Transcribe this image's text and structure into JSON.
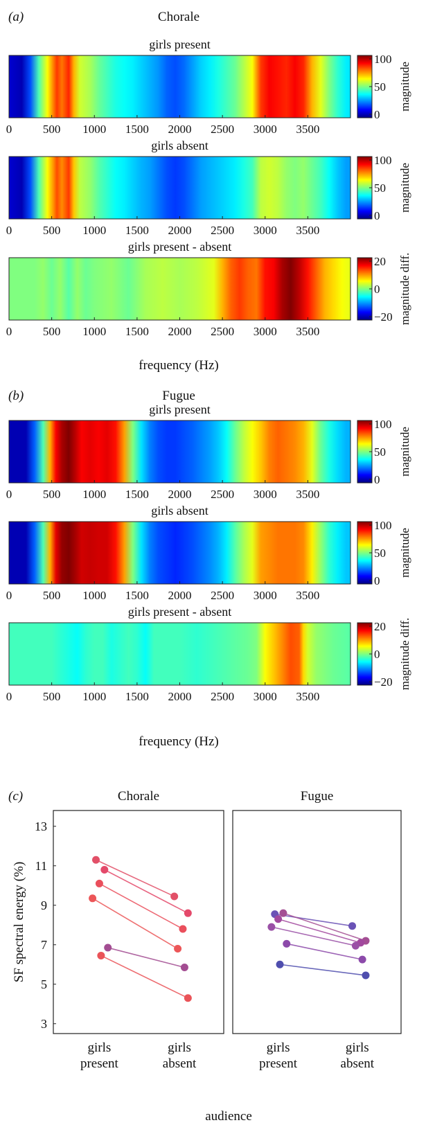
{
  "panel_a": {
    "letter": "(a)",
    "title": "Chorale",
    "xlabel": "frequency (Hz)",
    "xticks": [
      0,
      500,
      1000,
      1500,
      2000,
      2500,
      3000,
      3500
    ],
    "xlim": [
      0,
      4000
    ],
    "plots": [
      {
        "title": "girls present",
        "colorbar_label": "magnitude",
        "clim": [
          0,
          100
        ],
        "cticks": [
          "100",
          "50",
          "0"
        ],
        "stops": [
          [
            0,
            8
          ],
          [
            150,
            5
          ],
          [
            250,
            20
          ],
          [
            350,
            45
          ],
          [
            450,
            62
          ],
          [
            520,
            75
          ],
          [
            560,
            82
          ],
          [
            620,
            76
          ],
          [
            700,
            84
          ],
          [
            760,
            70
          ],
          [
            830,
            58
          ],
          [
            950,
            54
          ],
          [
            1050,
            48
          ],
          [
            1150,
            44
          ],
          [
            1250,
            40
          ],
          [
            1350,
            38
          ],
          [
            1450,
            36
          ],
          [
            1550,
            33
          ],
          [
            1650,
            30
          ],
          [
            1750,
            27
          ],
          [
            1850,
            22
          ],
          [
            1950,
            20
          ],
          [
            2050,
            23
          ],
          [
            2150,
            28
          ],
          [
            2250,
            33
          ],
          [
            2350,
            36
          ],
          [
            2450,
            40
          ],
          [
            2550,
            44
          ],
          [
            2650,
            48
          ],
          [
            2750,
            55
          ],
          [
            2850,
            62
          ],
          [
            2950,
            82
          ],
          [
            3050,
            88
          ],
          [
            3150,
            86
          ],
          [
            3250,
            84
          ],
          [
            3350,
            88
          ],
          [
            3450,
            84
          ],
          [
            3550,
            70
          ],
          [
            3650,
            60
          ],
          [
            3750,
            50
          ],
          [
            3850,
            42
          ],
          [
            3950,
            36
          ],
          [
            4000,
            35
          ]
        ]
      },
      {
        "title": "girls absent",
        "colorbar_label": "magnitude",
        "clim": [
          0,
          100
        ],
        "cticks": [
          "100",
          "50",
          "0"
        ],
        "stops": [
          [
            0,
            8
          ],
          [
            150,
            5
          ],
          [
            250,
            20
          ],
          [
            350,
            45
          ],
          [
            450,
            62
          ],
          [
            520,
            73
          ],
          [
            560,
            80
          ],
          [
            620,
            74
          ],
          [
            700,
            82
          ],
          [
            760,
            68
          ],
          [
            830,
            56
          ],
          [
            950,
            52
          ],
          [
            1050,
            46
          ],
          [
            1150,
            42
          ],
          [
            1250,
            38
          ],
          [
            1350,
            36
          ],
          [
            1450,
            33
          ],
          [
            1550,
            30
          ],
          [
            1650,
            28
          ],
          [
            1750,
            24
          ],
          [
            1850,
            20
          ],
          [
            1950,
            18
          ],
          [
            2050,
            20
          ],
          [
            2150,
            24
          ],
          [
            2250,
            28
          ],
          [
            2350,
            30
          ],
          [
            2450,
            32
          ],
          [
            2550,
            34
          ],
          [
            2650,
            36
          ],
          [
            2750,
            40
          ],
          [
            2850,
            44
          ],
          [
            2950,
            56
          ],
          [
            3050,
            58
          ],
          [
            3150,
            56
          ],
          [
            3250,
            52
          ],
          [
            3350,
            50
          ],
          [
            3450,
            52
          ],
          [
            3550,
            48
          ],
          [
            3650,
            44
          ],
          [
            3750,
            38
          ],
          [
            3850,
            32
          ],
          [
            3950,
            28
          ],
          [
            4000,
            28
          ]
        ]
      },
      {
        "title": "girls present - absent",
        "colorbar_label": "magnitude diff.",
        "clim": [
          -25,
          25
        ],
        "cticks": [
          "20",
          "0",
          "−20"
        ],
        "stops": [
          [
            0,
            0
          ],
          [
            300,
            0
          ],
          [
            400,
            1
          ],
          [
            500,
            -1
          ],
          [
            600,
            1
          ],
          [
            700,
            -2
          ],
          [
            800,
            1
          ],
          [
            900,
            -1
          ],
          [
            1000,
            0
          ],
          [
            1200,
            1
          ],
          [
            1400,
            -1
          ],
          [
            1600,
            2
          ],
          [
            1800,
            3
          ],
          [
            2000,
            2
          ],
          [
            2200,
            3
          ],
          [
            2400,
            5
          ],
          [
            2500,
            10
          ],
          [
            2600,
            14
          ],
          [
            2700,
            16
          ],
          [
            2800,
            14
          ],
          [
            2900,
            13
          ],
          [
            3000,
            18
          ],
          [
            3100,
            19
          ],
          [
            3200,
            23
          ],
          [
            3300,
            25
          ],
          [
            3400,
            22
          ],
          [
            3500,
            18
          ],
          [
            3600,
            14
          ],
          [
            3700,
            10
          ],
          [
            3800,
            8
          ],
          [
            3900,
            6
          ],
          [
            4000,
            5
          ]
        ]
      }
    ]
  },
  "panel_b": {
    "letter": "(b)",
    "title": "Fugue",
    "xlabel": "frequency (Hz)",
    "xticks": [
      0,
      500,
      1000,
      1500,
      2000,
      2500,
      3000,
      3500
    ],
    "xlim": [
      0,
      4000
    ],
    "plots": [
      {
        "title": "girls present",
        "colorbar_label": "magnitude",
        "clim": [
          0,
          100
        ],
        "cticks": [
          "100",
          "50",
          "0"
        ],
        "stops": [
          [
            0,
            5
          ],
          [
            200,
            5
          ],
          [
            300,
            22
          ],
          [
            400,
            45
          ],
          [
            480,
            70
          ],
          [
            550,
            88
          ],
          [
            620,
            96
          ],
          [
            700,
            100
          ],
          [
            780,
            94
          ],
          [
            850,
            88
          ],
          [
            950,
            90
          ],
          [
            1050,
            88
          ],
          [
            1150,
            90
          ],
          [
            1250,
            86
          ],
          [
            1350,
            72
          ],
          [
            1450,
            50
          ],
          [
            1550,
            35
          ],
          [
            1650,
            25
          ],
          [
            1750,
            20
          ],
          [
            1850,
            18
          ],
          [
            1950,
            18
          ],
          [
            2050,
            20
          ],
          [
            2150,
            22
          ],
          [
            2250,
            25
          ],
          [
            2350,
            28
          ],
          [
            2450,
            32
          ],
          [
            2550,
            38
          ],
          [
            2650,
            48
          ],
          [
            2750,
            56
          ],
          [
            2850,
            62
          ],
          [
            2950,
            68
          ],
          [
            3050,
            75
          ],
          [
            3150,
            78
          ],
          [
            3250,
            76
          ],
          [
            3350,
            74
          ],
          [
            3450,
            70
          ],
          [
            3550,
            60
          ],
          [
            3650,
            48
          ],
          [
            3750,
            40
          ],
          [
            3850,
            34
          ],
          [
            3950,
            30
          ],
          [
            4000,
            30
          ]
        ]
      },
      {
        "title": "girls absent",
        "colorbar_label": "magnitude",
        "clim": [
          0,
          100
        ],
        "cticks": [
          "100",
          "50",
          "0"
        ],
        "stops": [
          [
            0,
            5
          ],
          [
            200,
            5
          ],
          [
            300,
            22
          ],
          [
            400,
            45
          ],
          [
            480,
            70
          ],
          [
            550,
            90
          ],
          [
            620,
            98
          ],
          [
            700,
            100
          ],
          [
            780,
            96
          ],
          [
            850,
            92
          ],
          [
            950,
            93
          ],
          [
            1050,
            92
          ],
          [
            1150,
            92
          ],
          [
            1250,
            86
          ],
          [
            1350,
            72
          ],
          [
            1450,
            50
          ],
          [
            1550,
            35
          ],
          [
            1650,
            25
          ],
          [
            1750,
            20
          ],
          [
            1850,
            18
          ],
          [
            1950,
            16
          ],
          [
            2050,
            18
          ],
          [
            2150,
            20
          ],
          [
            2250,
            23
          ],
          [
            2350,
            26
          ],
          [
            2450,
            30
          ],
          [
            2550,
            36
          ],
          [
            2650,
            46
          ],
          [
            2750,
            54
          ],
          [
            2850,
            60
          ],
          [
            2950,
            72
          ],
          [
            3050,
            74
          ],
          [
            3150,
            76
          ],
          [
            3250,
            76
          ],
          [
            3350,
            76
          ],
          [
            3450,
            74
          ],
          [
            3550,
            64
          ],
          [
            3650,
            52
          ],
          [
            3750,
            42
          ],
          [
            3850,
            36
          ],
          [
            3950,
            32
          ],
          [
            4000,
            32
          ]
        ]
      },
      {
        "title": "girls present - absent",
        "colorbar_label": "magnitude diff.",
        "clim": [
          -25,
          25
        ],
        "cticks": [
          "20",
          "0",
          "−20"
        ],
        "stops": [
          [
            0,
            -3
          ],
          [
            300,
            -3
          ],
          [
            500,
            -3
          ],
          [
            700,
            -5
          ],
          [
            800,
            -6
          ],
          [
            900,
            -4
          ],
          [
            1000,
            -3
          ],
          [
            1100,
            -3
          ],
          [
            1200,
            -5
          ],
          [
            1300,
            -4
          ],
          [
            1400,
            -3
          ],
          [
            1500,
            -4
          ],
          [
            1600,
            -6
          ],
          [
            1700,
            -3
          ],
          [
            1800,
            -3
          ],
          [
            2000,
            -3
          ],
          [
            2200,
            -4
          ],
          [
            2400,
            -3
          ],
          [
            2600,
            -2
          ],
          [
            2800,
            -1
          ],
          [
            2900,
            0
          ],
          [
            3000,
            6
          ],
          [
            3100,
            9
          ],
          [
            3200,
            12
          ],
          [
            3300,
            15
          ],
          [
            3400,
            14
          ],
          [
            3450,
            8
          ],
          [
            3500,
            4
          ],
          [
            3600,
            1
          ],
          [
            3800,
            -1
          ],
          [
            4000,
            -2
          ]
        ]
      }
    ]
  },
  "panel_c": {
    "letter": "(c)",
    "ylabel": "SF spectral energy (%)",
    "xlabel": "audience",
    "ylim": [
      2.5,
      13.8
    ],
    "yticks": [
      3,
      5,
      7,
      9,
      11,
      13
    ],
    "category_lines": [
      [
        "girls",
        "present"
      ],
      [
        "girls",
        "absent"
      ]
    ],
    "subplots": [
      {
        "title": "Chorale",
        "pairs": [
          {
            "present": 11.3,
            "absent": 9.45,
            "color": "#e25068"
          },
          {
            "present": 10.8,
            "absent": 8.6,
            "color": "#e4496a"
          },
          {
            "present": 10.1,
            "absent": 7.8,
            "color": "#ea4f5c"
          },
          {
            "present": 9.35,
            "absent": 6.8,
            "color": "#ec5658"
          },
          {
            "present": 6.85,
            "absent": 5.85,
            "color": "#a34d92"
          },
          {
            "present": 6.45,
            "absent": 4.3,
            "color": "#ea5358"
          }
        ]
      },
      {
        "title": "Fugue",
        "pairs": [
          {
            "present": 8.55,
            "absent": 7.95,
            "color": "#6a52b6"
          },
          {
            "present": 8.6,
            "absent": 7.2,
            "color": "#a44f94"
          },
          {
            "present": 8.3,
            "absent": 7.1,
            "color": "#a2489e"
          },
          {
            "present": 7.9,
            "absent": 6.95,
            "color": "#9a50a6"
          },
          {
            "present": 7.05,
            "absent": 6.25,
            "color": "#8c4aaa"
          },
          {
            "present": 6.0,
            "absent": 5.45,
            "color": "#4f4eae"
          }
        ]
      }
    ]
  }
}
